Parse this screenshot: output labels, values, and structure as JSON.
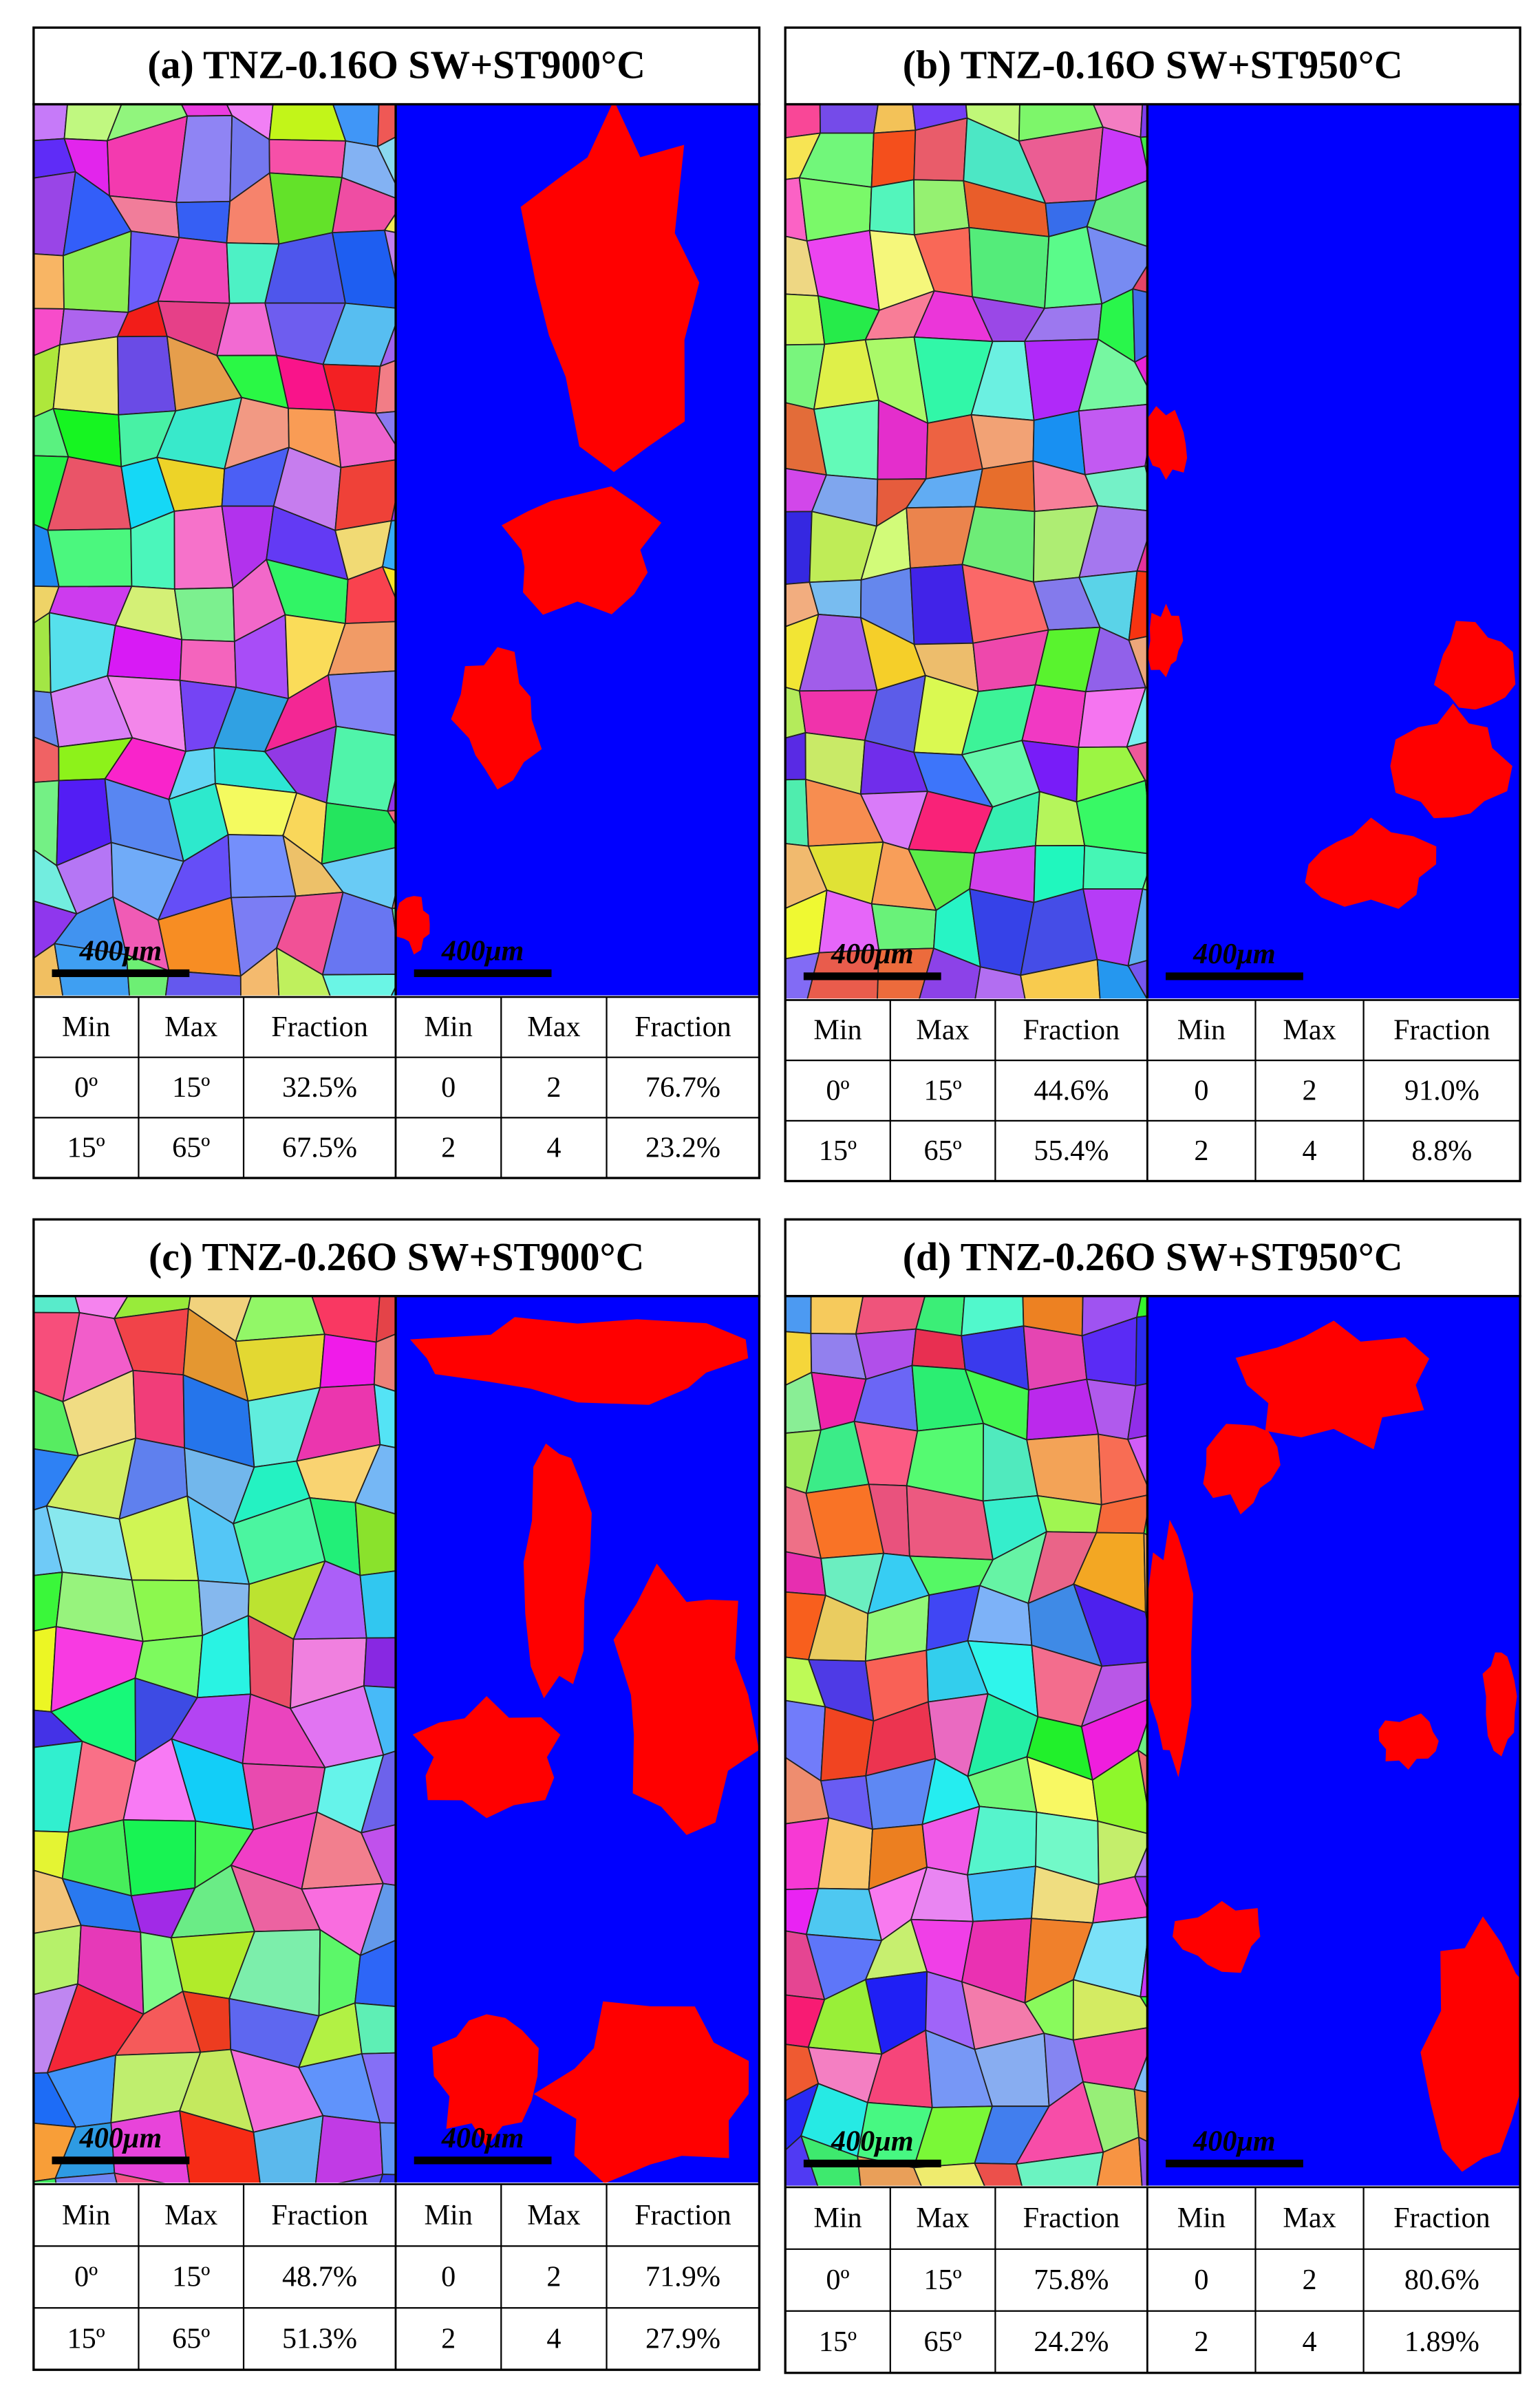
{
  "panels": [
    {
      "title": "(a) TNZ-0.16O SW+ST900°C",
      "scale_bars": [
        "400μm",
        "400μm"
      ],
      "tables": [
        {
          "header": [
            "Min",
            "Max",
            "Fraction"
          ],
          "rows": [
            [
              "0º",
              "15º",
              "32.5%"
            ],
            [
              "15º",
              "65º",
              "67.5%"
            ]
          ]
        },
        {
          "header": [
            "Min",
            "Max",
            "Fraction"
          ],
          "rows": [
            [
              "0",
              "2",
              "76.7%"
            ],
            [
              "2",
              "4",
              "23.2%"
            ]
          ]
        }
      ]
    },
    {
      "title": "(b) TNZ-0.16O SW+ST950°C",
      "scale_bars": [
        "400μm",
        "400μm"
      ],
      "tables": [
        {
          "header": [
            "Min",
            "Max",
            "Fraction"
          ],
          "rows": [
            [
              "0º",
              "15º",
              "44.6%"
            ],
            [
              "15º",
              "65º",
              "55.4%"
            ]
          ]
        },
        {
          "header": [
            "Min",
            "Max",
            "Fraction"
          ],
          "rows": [
            [
              "0",
              "2",
              "91.0%"
            ],
            [
              "2",
              "4",
              "8.8%"
            ]
          ]
        }
      ]
    },
    {
      "title": "(c) TNZ-0.26O SW+ST900°C",
      "scale_bars": [
        "400μm",
        "400μm"
      ],
      "tables": [
        {
          "header": [
            "Min",
            "Max",
            "Fraction"
          ],
          "rows": [
            [
              "0º",
              "15º",
              "48.7%"
            ],
            [
              "15º",
              "65º",
              "51.3%"
            ]
          ]
        },
        {
          "header": [
            "Min",
            "Max",
            "Fraction"
          ],
          "rows": [
            [
              "0",
              "2",
              "71.9%"
            ],
            [
              "2",
              "4",
              "27.9%"
            ]
          ]
        }
      ]
    },
    {
      "title": "(d) TNZ-0.26O SW+ST950°C",
      "scale_bars": [
        "400μm",
        "400μm"
      ],
      "tables": [
        {
          "header": [
            "Min",
            "Max",
            "Fraction"
          ],
          "rows": [
            [
              "0º",
              "15º",
              "75.8%"
            ],
            [
              "15º",
              "65º",
              "24.2%"
            ]
          ]
        },
        {
          "header": [
            "Min",
            "Max",
            "Fraction"
          ],
          "rows": [
            [
              "0",
              "2",
              "80.6%"
            ],
            [
              "2",
              "4",
              "1.89%"
            ]
          ]
        }
      ]
    }
  ]
}
